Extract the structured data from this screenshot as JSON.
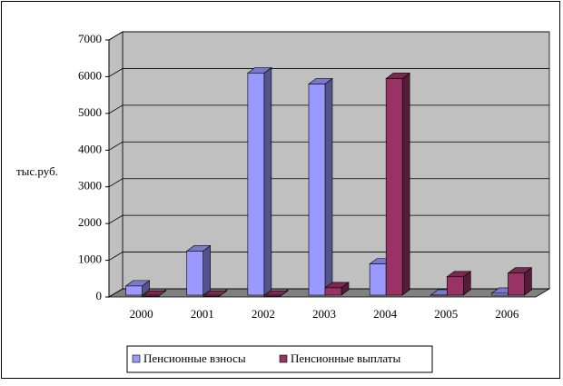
{
  "chart_data": {
    "type": "bar3d",
    "y_label": "тыс.руб.",
    "categories": [
      "2000",
      "2001",
      "2002",
      "2003",
      "2004",
      "2005",
      "2006"
    ],
    "series": [
      {
        "name": "Пенсионные взносы",
        "color": "#9999ff",
        "values": [
          300,
          1250,
          6100,
          5800,
          900,
          50,
          100
        ]
      },
      {
        "name": "Пенсионные выплаты",
        "color": "#993366",
        "values": [
          20,
          20,
          20,
          250,
          5950,
          550,
          650
        ]
      }
    ],
    "ylim": [
      0,
      7000
    ],
    "yticks": [
      0,
      1000,
      2000,
      3000,
      4000,
      5000,
      6000,
      7000
    ],
    "grid": true,
    "legend": "bottom"
  }
}
